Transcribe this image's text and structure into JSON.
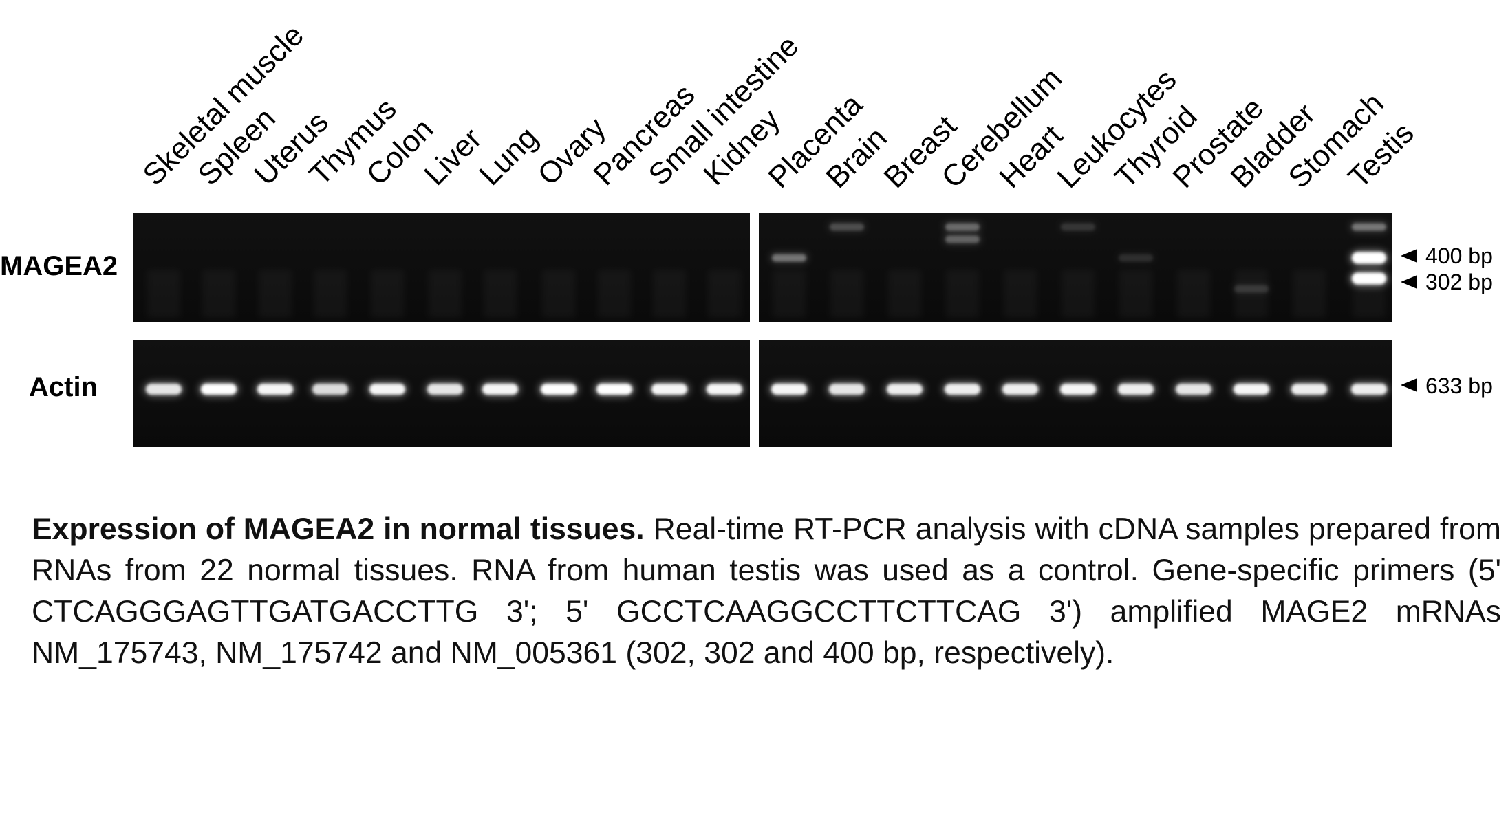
{
  "figure": {
    "lanes": [
      "Skeletal muscle",
      "Spleen",
      "Uterus",
      "Thymus",
      "Colon",
      "Liver",
      "Lung",
      "Ovary",
      "Pancreas",
      "Small intestine",
      "Kidney",
      "Placenta",
      "Brain",
      "Breast",
      "Cerebellum",
      "Heart",
      "Leukocytes",
      "Thyroid",
      "Prostate",
      "Bladder",
      "Stomach",
      "Testis"
    ],
    "rows": [
      {
        "label": "MAGEA2",
        "markers": [
          "400 bp",
          "302 bp"
        ],
        "bands": [
          {
            "lane": "Placenta",
            "size": "400 bp",
            "intensity": 0.35
          },
          {
            "lane": "Brain",
            "size": "high",
            "intensity": 0.2
          },
          {
            "lane": "Cerebellum",
            "size": "high",
            "intensity": 0.3
          },
          {
            "lane": "Cerebellum",
            "size": "high2",
            "intensity": 0.28
          },
          {
            "lane": "Leukocytes",
            "size": "high",
            "intensity": 0.12
          },
          {
            "lane": "Thyroid",
            "size": "400 bp",
            "intensity": 0.1
          },
          {
            "lane": "Bladder",
            "size": "low",
            "intensity": 0.12
          },
          {
            "lane": "Testis",
            "size": "high",
            "intensity": 0.35
          },
          {
            "lane": "Testis",
            "size": "400 bp",
            "intensity": 1.0
          },
          {
            "lane": "Testis",
            "size": "302 bp",
            "intensity": 1.0
          }
        ]
      },
      {
        "label": "Actin",
        "markers": [
          "633 bp"
        ],
        "band_intensity": [
          0.85,
          1.0,
          0.95,
          0.8,
          0.95,
          0.85,
          0.95,
          1.0,
          1.0,
          0.95,
          0.95,
          0.95,
          0.85,
          0.9,
          0.9,
          0.9,
          0.95,
          0.9,
          0.85,
          0.95,
          0.9,
          0.9
        ]
      }
    ]
  },
  "caption": {
    "title": "Expression of MAGEA2 in normal tissues.",
    "body": "Real-time RT-PCR  analysis with cDNA samples prepared from RNAs from 22 normal tissues.  RNA from human testis was used as a control.  Gene-specific primers (5' CTCAGGGAGTTGATGACCTTG 3'; 5' GCCTCAAGGCCTTCTTCAG 3') amplified MAGE2 mRNAs NM_175743, NM_175742 and NM_005361 (302, 302 and 400 bp, respectively)."
  },
  "colors": {
    "gel_background": "#0c0c0c",
    "band": "#ffffff",
    "text": "#000000"
  }
}
